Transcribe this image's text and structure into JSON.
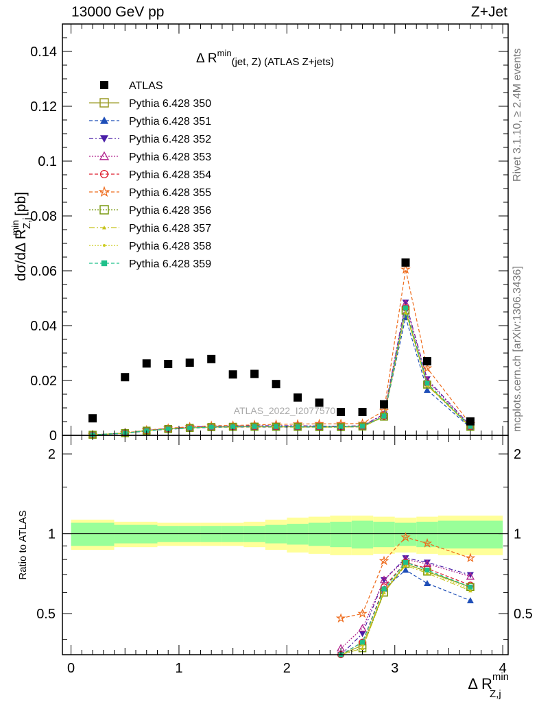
{
  "header": {
    "left": "13000 GeV pp",
    "right": "Z+Jet",
    "side_rivet": "Rivet 3.1.10, ≥ 2.4M events",
    "side_mcplots": "mcplots.cern.ch [arXiv:1306.3436]"
  },
  "chart_data": [
    {
      "type": "scatter",
      "title_main": "Δ R",
      "title_sup": "min",
      "title_sub": "(jet, Z) (ATLAS Z+jets)",
      "ylabel": "dσ/dΔ R",
      "ylabel_sup": "min",
      "ylabel_sub": "Z,j",
      "ylabel_unit": " [pb]",
      "watermark": "ATLAS_2022_I2077570",
      "ylim": [
        0,
        0.15
      ],
      "xlim": [
        -0.08,
        4.05
      ],
      "y_ticks": [
        0,
        0.02,
        0.04,
        0.06,
        0.08,
        0.1,
        0.12,
        0.14
      ],
      "y_tick_labels": [
        "0",
        "0.02",
        "0.04",
        "0.06",
        "0.08",
        "0.1",
        "0.12",
        "0.14"
      ],
      "grid": false,
      "legend_position": "top-left",
      "x": [
        0.2,
        0.5,
        0.7,
        0.9,
        1.1,
        1.3,
        1.5,
        1.7,
        1.9,
        2.1,
        2.3,
        2.5,
        2.7,
        2.9,
        3.1,
        3.3,
        3.7
      ],
      "data": {
        "name": "ATLAS",
        "values": [
          0.0062,
          0.0212,
          0.0262,
          0.026,
          0.0265,
          0.0278,
          0.0222,
          0.0224,
          0.0187,
          0.0138,
          0.0119,
          0.0085,
          0.0085,
          0.0113,
          0.063,
          0.027,
          0.0051
        ]
      },
      "series": [
        {
          "name": "Pythia 6.428 350",
          "values": [
            0.0002,
            0.0008,
            0.0017,
            0.0023,
            0.0027,
            0.003,
            0.0031,
            0.0032,
            0.0032,
            0.0031,
            0.0031,
            0.0032,
            0.0033,
            0.0068,
            0.0455,
            0.0185,
            0.0031
          ]
        },
        {
          "name": "Pythia 6.428 351",
          "values": [
            0.0002,
            0.0007,
            0.0016,
            0.0022,
            0.0026,
            0.0029,
            0.003,
            0.003,
            0.003,
            0.003,
            0.003,
            0.003,
            0.0031,
            0.0069,
            0.043,
            0.0165,
            0.0028
          ]
        },
        {
          "name": "Pythia 6.428 352",
          "values": [
            0.0002,
            0.0008,
            0.0018,
            0.0025,
            0.003,
            0.0033,
            0.0034,
            0.0035,
            0.0035,
            0.0035,
            0.0034,
            0.0033,
            0.0035,
            0.0077,
            0.0485,
            0.0205,
            0.0035
          ]
        },
        {
          "name": "Pythia 6.428 353",
          "values": [
            0.0002,
            0.0008,
            0.0018,
            0.0024,
            0.0029,
            0.0032,
            0.0033,
            0.0034,
            0.0034,
            0.0034,
            0.0033,
            0.0032,
            0.0034,
            0.0076,
            0.048,
            0.02,
            0.0034
          ]
        },
        {
          "name": "Pythia 6.428 354",
          "values": [
            0.0002,
            0.0008,
            0.0017,
            0.0023,
            0.0028,
            0.003,
            0.0031,
            0.0032,
            0.0032,
            0.0031,
            0.0031,
            0.0031,
            0.0033,
            0.007,
            0.0465,
            0.019,
            0.0032
          ]
        },
        {
          "name": "Pythia 6.428 355",
          "values": [
            0.0002,
            0.0009,
            0.0019,
            0.0026,
            0.0031,
            0.0035,
            0.0036,
            0.0038,
            0.004,
            0.0041,
            0.0042,
            0.0042,
            0.0043,
            0.009,
            0.0605,
            0.0245,
            0.0041
          ]
        },
        {
          "name": "Pythia 6.428 356",
          "values": [
            0.0002,
            0.0008,
            0.0017,
            0.0023,
            0.0027,
            0.003,
            0.0031,
            0.0031,
            0.0031,
            0.0031,
            0.003,
            0.003,
            0.0032,
            0.0068,
            0.0455,
            0.0185,
            0.0031
          ]
        },
        {
          "name": "Pythia 6.428 357",
          "values": [
            0.0002,
            0.0008,
            0.0017,
            0.0023,
            0.0027,
            0.003,
            0.003,
            0.0031,
            0.0031,
            0.003,
            0.003,
            0.003,
            0.0031,
            0.0067,
            0.045,
            0.0182,
            0.003
          ]
        },
        {
          "name": "Pythia 6.428 358",
          "values": [
            0.0002,
            0.0008,
            0.0017,
            0.0023,
            0.0027,
            0.003,
            0.0031,
            0.0031,
            0.0031,
            0.0031,
            0.003,
            0.003,
            0.0032,
            0.0069,
            0.046,
            0.0187,
            0.0031
          ]
        },
        {
          "name": "Pythia 6.428 359",
          "values": [
            0.0002,
            0.0008,
            0.0017,
            0.0023,
            0.0027,
            0.003,
            0.0031,
            0.0032,
            0.0032,
            0.0031,
            0.0031,
            0.0031,
            0.0033,
            0.007,
            0.0465,
            0.019,
            0.0032
          ]
        }
      ],
      "series_styles": [
        {
          "color": "#9a9a25",
          "marker": "square-open",
          "dash": ""
        },
        {
          "color": "#1f4fb8",
          "marker": "triangle-up-filled",
          "dash": "5,3"
        },
        {
          "color": "#4a1fa8",
          "marker": "triangle-down-filled",
          "dash": "6,3,2,3"
        },
        {
          "color": "#b0208c",
          "marker": "triangle-up-open",
          "dash": "2,2"
        },
        {
          "color": "#dd1a2a",
          "marker": "circle-open",
          "dash": "5,3"
        },
        {
          "color": "#ee6a1a",
          "marker": "star-open",
          "dash": "5,3"
        },
        {
          "color": "#7a9a10",
          "marker": "square-open",
          "dash": "2,2"
        },
        {
          "color": "#c6c21a",
          "marker": "triangle-small",
          "dash": "8,3,2,3"
        },
        {
          "color": "#cccc22",
          "marker": "dot",
          "dash": "2,2"
        },
        {
          "color": "#1fc08a",
          "marker": "square-filled",
          "dash": "5,3"
        }
      ]
    },
    {
      "type": "line",
      "ylabel": "Ratio to ATLAS",
      "xlabel": "Δ R",
      "xlabel_sup": "min",
      "xlabel_sub": "Z,j",
      "ylim": [
        0.35,
        2.35
      ],
      "y_log": true,
      "y_ticks": [
        0.5,
        1,
        2
      ],
      "y_tick_labels": [
        "0.5",
        "1",
        "2"
      ],
      "x_ticks": [
        0,
        1,
        2,
        3,
        4
      ],
      "x_tick_labels": [
        "0",
        "1",
        "2",
        "3",
        "4"
      ],
      "reference_line": 1,
      "band_edges": [
        0.0,
        0.4,
        0.6,
        0.8,
        1.0,
        1.2,
        1.4,
        1.6,
        1.8,
        2.0,
        2.2,
        2.4,
        2.6,
        2.8,
        3.0,
        3.2,
        3.4,
        4.0
      ],
      "band_inner": [
        0.1,
        0.08,
        0.08,
        0.07,
        0.07,
        0.07,
        0.07,
        0.07,
        0.08,
        0.09,
        0.1,
        0.11,
        0.12,
        0.11,
        0.1,
        0.11,
        0.12
      ],
      "band_outer": [
        0.13,
        0.11,
        0.11,
        0.1,
        0.1,
        0.1,
        0.1,
        0.11,
        0.13,
        0.15,
        0.16,
        0.17,
        0.17,
        0.16,
        0.15,
        0.16,
        0.17
      ],
      "ratio_x": [
        2.5,
        2.7,
        2.9,
        3.1,
        3.3,
        3.7
      ],
      "ratio_series": [
        [
          0.34,
          0.38,
          0.6,
          0.77,
          0.72,
          0.63
        ],
        [
          0.34,
          0.39,
          0.62,
          0.73,
          0.65,
          0.56
        ],
        [
          0.35,
          0.42,
          0.67,
          0.81,
          0.78,
          0.7
        ],
        [
          0.37,
          0.44,
          0.67,
          0.8,
          0.77,
          0.69
        ],
        [
          0.35,
          0.39,
          0.63,
          0.78,
          0.74,
          0.64
        ],
        [
          0.48,
          0.5,
          0.79,
          0.97,
          0.92,
          0.81
        ],
        [
          0.34,
          0.37,
          0.6,
          0.77,
          0.72,
          0.63
        ],
        [
          0.34,
          0.37,
          0.6,
          0.76,
          0.71,
          0.61
        ],
        [
          0.35,
          0.38,
          0.61,
          0.77,
          0.72,
          0.62
        ],
        [
          0.35,
          0.39,
          0.62,
          0.78,
          0.73,
          0.63
        ]
      ]
    }
  ]
}
